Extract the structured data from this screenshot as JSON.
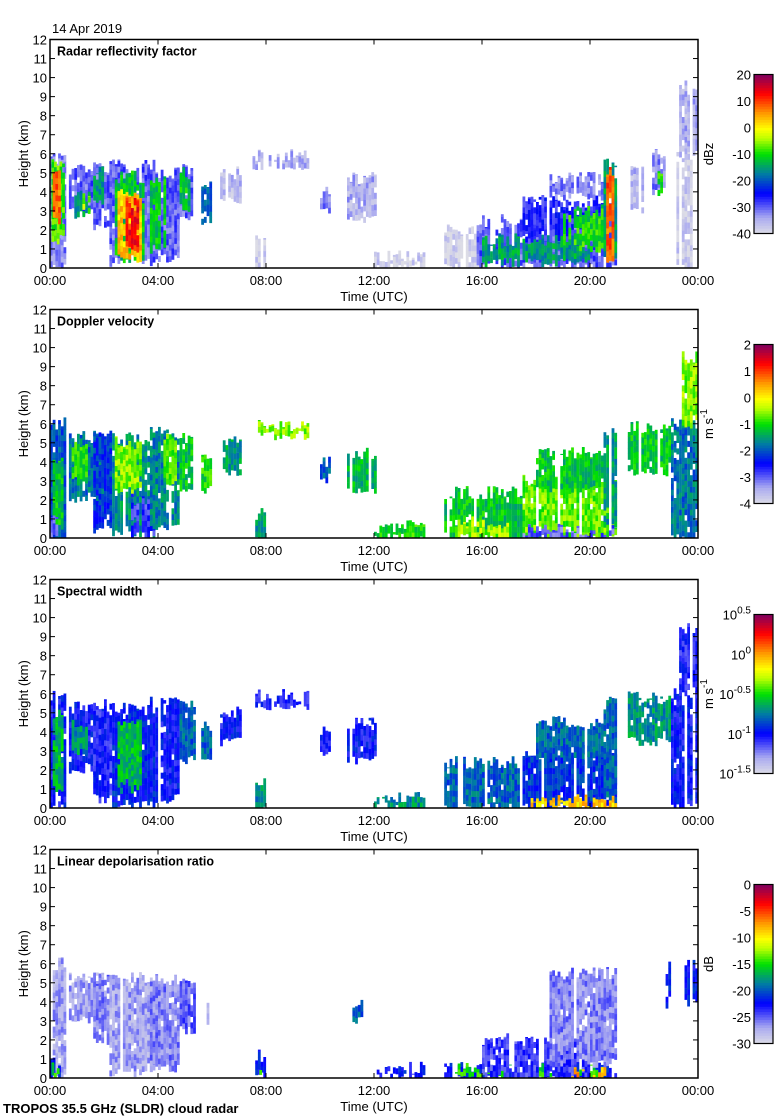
{
  "header": {
    "date": "14 Apr 2019"
  },
  "footer": {
    "instrument": "TROPOS 35.5 GHz (SLDR) cloud radar"
  },
  "chart_data": [
    {
      "type": "heatmap",
      "title": "Radar reflectivity factor",
      "xlabel": "Time (UTC)",
      "ylabel": "Height (km)",
      "xlim": [
        0,
        24
      ],
      "ylim": [
        0,
        12
      ],
      "xticks": [
        "00:00",
        "04:00",
        "08:00",
        "12:00",
        "16:00",
        "20:00",
        "00:00"
      ],
      "yticks": [
        "0",
        "1",
        "2",
        "3",
        "4",
        "5",
        "6",
        "7",
        "8",
        "9",
        "10",
        "11",
        "12"
      ],
      "colorbar": {
        "unit": "dBz",
        "unit_sup": "",
        "range": [
          -40,
          20
        ],
        "ticks": [
          {
            "base": "-40",
            "exp": ""
          },
          {
            "base": "-30",
            "exp": ""
          },
          {
            "base": "-20",
            "exp": ""
          },
          {
            "base": "-10",
            "exp": ""
          },
          {
            "base": "0",
            "exp": ""
          },
          {
            "base": "10",
            "exp": ""
          },
          {
            "base": "20",
            "exp": ""
          }
        ]
      },
      "features_hours_km_value": [
        [
          0,
          0.6,
          0,
          6,
          -32
        ],
        [
          0.05,
          0.5,
          1.5,
          5.5,
          -8
        ],
        [
          0.1,
          0.4,
          2.5,
          4.8,
          8
        ],
        [
          0.7,
          2,
          3,
          5.2,
          -30
        ],
        [
          0.8,
          1.5,
          2.8,
          4,
          -15
        ],
        [
          1.2,
          1.5,
          3,
          3.8,
          -5
        ],
        [
          1.6,
          2.2,
          2,
          5.3,
          -30
        ],
        [
          1.6,
          2,
          3.5,
          5,
          -15
        ],
        [
          2.2,
          3.9,
          0.3,
          5.5,
          -30
        ],
        [
          2.4,
          3.5,
          0.5,
          4.8,
          -12
        ],
        [
          2.5,
          3.4,
          0.5,
          4,
          3
        ],
        [
          2.7,
          3.3,
          1,
          3.5,
          12
        ],
        [
          3.6,
          4.7,
          0.5,
          5,
          -30
        ],
        [
          3.7,
          4.2,
          1,
          4.5,
          -12
        ],
        [
          4.7,
          5.2,
          2.5,
          5.2,
          -30
        ],
        [
          4.8,
          5.1,
          3,
          5,
          -12
        ],
        [
          5.6,
          5.9,
          2.5,
          4.2,
          -20
        ],
        [
          6.3,
          7,
          3.5,
          5,
          -36
        ],
        [
          7.5,
          9.5,
          5.4,
          5.9,
          -35
        ],
        [
          7.6,
          7.9,
          0,
          1.5,
          -38
        ],
        [
          10,
          10.3,
          3,
          4,
          -32
        ],
        [
          11,
          12,
          2.5,
          4.7,
          -35
        ],
        [
          12,
          13.8,
          0,
          0.6,
          -38
        ],
        [
          14.6,
          16,
          0,
          2,
          -39
        ],
        [
          15.8,
          21,
          0,
          2.5,
          -30
        ],
        [
          16,
          20,
          0.3,
          1.5,
          -15
        ],
        [
          17.5,
          21,
          1.5,
          3.5,
          -27
        ],
        [
          18.5,
          20.5,
          3.8,
          4.7,
          -32
        ],
        [
          19,
          20.5,
          1,
          3,
          -10
        ],
        [
          20.5,
          21,
          0.5,
          5.5,
          -15
        ],
        [
          20.6,
          20.9,
          0.5,
          5,
          8
        ],
        [
          21.5,
          22,
          3,
          5.5,
          -36
        ],
        [
          22.3,
          22.8,
          4,
          6,
          -32
        ],
        [
          22.5,
          22.7,
          4,
          5.2,
          -10
        ],
        [
          23.2,
          23.8,
          0,
          6,
          -38
        ],
        [
          23.3,
          24,
          6,
          9.5,
          -35
        ]
      ]
    },
    {
      "type": "heatmap",
      "title": "Doppler velocity",
      "xlabel": "Time (UTC)",
      "ylabel": "Height (km)",
      "xlim": [
        0,
        24
      ],
      "ylim": [
        0,
        12
      ],
      "xticks": [
        "00:00",
        "04:00",
        "08:00",
        "12:00",
        "16:00",
        "20:00",
        "00:00"
      ],
      "yticks": [
        "0",
        "1",
        "2",
        "3",
        "4",
        "5",
        "6",
        "7",
        "8",
        "9",
        "10",
        "11",
        "12"
      ],
      "colorbar": {
        "unit": "m s",
        "unit_sup": "-1",
        "range": [
          -4,
          2
        ],
        "ticks": [
          {
            "base": "-4",
            "exp": ""
          },
          {
            "base": "-3",
            "exp": ""
          },
          {
            "base": "-2",
            "exp": ""
          },
          {
            "base": "-1",
            "exp": ""
          },
          {
            "base": "0",
            "exp": ""
          },
          {
            "base": "1",
            "exp": ""
          },
          {
            "base": "2",
            "exp": ""
          }
        ]
      },
      "features_hours_km_value": [
        [
          0,
          0.6,
          0,
          6,
          -2
        ],
        [
          0.1,
          0.5,
          0.5,
          4,
          -1.2
        ],
        [
          0,
          0.3,
          0,
          1,
          -3
        ],
        [
          0.7,
          2,
          2,
          5.3,
          -1.8
        ],
        [
          0.8,
          1.4,
          3,
          5,
          -1
        ],
        [
          1.6,
          2.3,
          0.5,
          5.4,
          -2.2
        ],
        [
          2.3,
          3.9,
          0.2,
          5.2,
          -1.6
        ],
        [
          2.4,
          3.5,
          2.5,
          5,
          -0.6
        ],
        [
          3,
          3.9,
          0,
          2,
          -2.8
        ],
        [
          3.7,
          4.7,
          0.5,
          5.5,
          -1.7
        ],
        [
          4.2,
          4.6,
          3,
          5.4,
          -0.8
        ],
        [
          4.8,
          5.3,
          2.5,
          5.3,
          -1.2
        ],
        [
          5.6,
          5.9,
          2.5,
          4.2,
          -1
        ],
        [
          6.3,
          7,
          3.5,
          5,
          -1.5
        ],
        [
          7.6,
          9.5,
          5.4,
          5.9,
          -0.6
        ],
        [
          7.6,
          7.9,
          0,
          1.5,
          -1.5
        ],
        [
          10,
          10.3,
          3,
          4,
          -2
        ],
        [
          11,
          12,
          2.5,
          4.4,
          -1.3
        ],
        [
          12,
          13.8,
          0,
          0.6,
          -1
        ],
        [
          14.6,
          17.5,
          0,
          2.4,
          -1.2
        ],
        [
          15,
          17,
          0,
          0.8,
          -0.5
        ],
        [
          17.5,
          21,
          0,
          3,
          -0.7
        ],
        [
          18,
          20.5,
          2.5,
          4.5,
          -1.2
        ],
        [
          17.5,
          21,
          0,
          0.4,
          -3
        ],
        [
          20.5,
          21,
          0.5,
          5.5,
          -1.5
        ],
        [
          21.4,
          23,
          3.5,
          5.8,
          -1.2
        ],
        [
          23,
          24,
          0,
          6,
          -1.8
        ],
        [
          23.3,
          24,
          6,
          9.5,
          -0.6
        ]
      ]
    },
    {
      "type": "heatmap",
      "title": "Spectral width",
      "xlabel": "Time (UTC)",
      "ylabel": "Height (km)",
      "xlim": [
        0,
        24
      ],
      "ylim": [
        0,
        12
      ],
      "xticks": [
        "00:00",
        "04:00",
        "08:00",
        "12:00",
        "16:00",
        "20:00",
        "00:00"
      ],
      "yticks": [
        "0",
        "1",
        "2",
        "3",
        "4",
        "5",
        "6",
        "7",
        "8",
        "9",
        "10",
        "11",
        "12"
      ],
      "colorbar": {
        "unit": "m s",
        "unit_sup": "-1",
        "range": [
          -1.5,
          0.5
        ],
        "scale": "log10",
        "ticks": [
          {
            "base": "10",
            "exp": "-1.5"
          },
          {
            "base": "10",
            "exp": "-1"
          },
          {
            "base": "10",
            "exp": "-0.5"
          },
          {
            "base": "10",
            "exp": "0"
          },
          {
            "base": "10",
            "exp": "0.5"
          }
        ]
      },
      "features_hours_km_value": [
        [
          0,
          0.6,
          0,
          6,
          -1
        ],
        [
          0.1,
          0.5,
          1,
          5,
          -0.6
        ],
        [
          0.7,
          2,
          2,
          5.3,
          -1
        ],
        [
          0.8,
          1.4,
          3,
          4.5,
          -0.7
        ],
        [
          1.6,
          2.3,
          0.5,
          5.4,
          -1.05
        ],
        [
          2.3,
          3.9,
          0.2,
          5.2,
          -0.95
        ],
        [
          2.5,
          3.4,
          1,
          4.5,
          -0.6
        ],
        [
          3.7,
          4.7,
          0.5,
          5.5,
          -1
        ],
        [
          4.8,
          5.3,
          2.5,
          5.3,
          -0.8
        ],
        [
          5.6,
          5.9,
          2.5,
          4.2,
          -0.8
        ],
        [
          6.3,
          7,
          3.5,
          5,
          -1
        ],
        [
          7.6,
          9.5,
          5.4,
          5.9,
          -1.05
        ],
        [
          7.6,
          7.9,
          0,
          1.5,
          -0.7
        ],
        [
          10,
          10.3,
          3,
          4,
          -1
        ],
        [
          11,
          12,
          2.5,
          4.4,
          -1
        ],
        [
          12,
          13.8,
          0,
          0.6,
          -0.7
        ],
        [
          14.6,
          17.5,
          0,
          2.4,
          -0.8
        ],
        [
          17.5,
          21,
          0,
          3,
          -0.9
        ],
        [
          18,
          20.5,
          2.5,
          4.5,
          -0.8
        ],
        [
          17.8,
          21,
          0,
          0.4,
          -0.1
        ],
        [
          20.5,
          21,
          0.5,
          5.5,
          -0.8
        ],
        [
          21.4,
          23,
          3.5,
          5.8,
          -0.7
        ],
        [
          23,
          24,
          0,
          6,
          -1
        ],
        [
          23.3,
          24,
          6,
          9.5,
          -1.05
        ]
      ]
    },
    {
      "type": "heatmap",
      "title": "Linear depolarisation ratio",
      "xlabel": "Time (UTC)",
      "ylabel": "Height (km)",
      "xlim": [
        0,
        24
      ],
      "ylim": [
        0,
        12
      ],
      "xticks": [
        "00:00",
        "04:00",
        "08:00",
        "12:00",
        "16:00",
        "20:00",
        "00:00"
      ],
      "yticks": [
        "0",
        "1",
        "2",
        "3",
        "4",
        "5",
        "6",
        "7",
        "8",
        "9",
        "10",
        "11",
        "12"
      ],
      "colorbar": {
        "unit": "dB",
        "unit_sup": "",
        "range": [
          -30,
          0
        ],
        "ticks": [
          {
            "base": "-30",
            "exp": ""
          },
          {
            "base": "-25",
            "exp": ""
          },
          {
            "base": "-20",
            "exp": ""
          },
          {
            "base": "-15",
            "exp": ""
          },
          {
            "base": "-10",
            "exp": ""
          },
          {
            "base": "-5",
            "exp": ""
          },
          {
            "base": "0",
            "exp": ""
          }
        ]
      },
      "features_hours_km_value": [
        [
          0,
          0.6,
          0,
          6,
          -27
        ],
        [
          0,
          0.4,
          0,
          1,
          -22
        ],
        [
          0.05,
          0.35,
          0.2,
          0.6,
          -15
        ],
        [
          0.7,
          2,
          3,
          5.2,
          -27
        ],
        [
          1.6,
          2.2,
          2,
          5.2,
          -26
        ],
        [
          2.2,
          3.9,
          0.3,
          5.3,
          -27
        ],
        [
          3.7,
          4.7,
          0.5,
          5.2,
          -26
        ],
        [
          4.8,
          5.3,
          2.5,
          5.2,
          -25
        ],
        [
          5.6,
          5.8,
          2.8,
          3.8,
          -27
        ],
        [
          7.6,
          7.9,
          0,
          1.2,
          -22
        ],
        [
          7.65,
          7.8,
          0,
          0.5,
          -15
        ],
        [
          11.2,
          11.5,
          3,
          3.8,
          -20
        ],
        [
          12,
          13.8,
          0,
          0.5,
          -22
        ],
        [
          14.6,
          21,
          0,
          0.5,
          -22
        ],
        [
          15,
          20.5,
          0.2,
          0.5,
          -15
        ],
        [
          16,
          20,
          0,
          2,
          -24
        ],
        [
          18.5,
          21,
          0.8,
          5.5,
          -26
        ],
        [
          19.2,
          20.6,
          0,
          0.35,
          -8
        ],
        [
          22.5,
          23,
          3.5,
          5.8,
          -22
        ],
        [
          23.5,
          24,
          4,
          6,
          -22
        ]
      ]
    }
  ]
}
